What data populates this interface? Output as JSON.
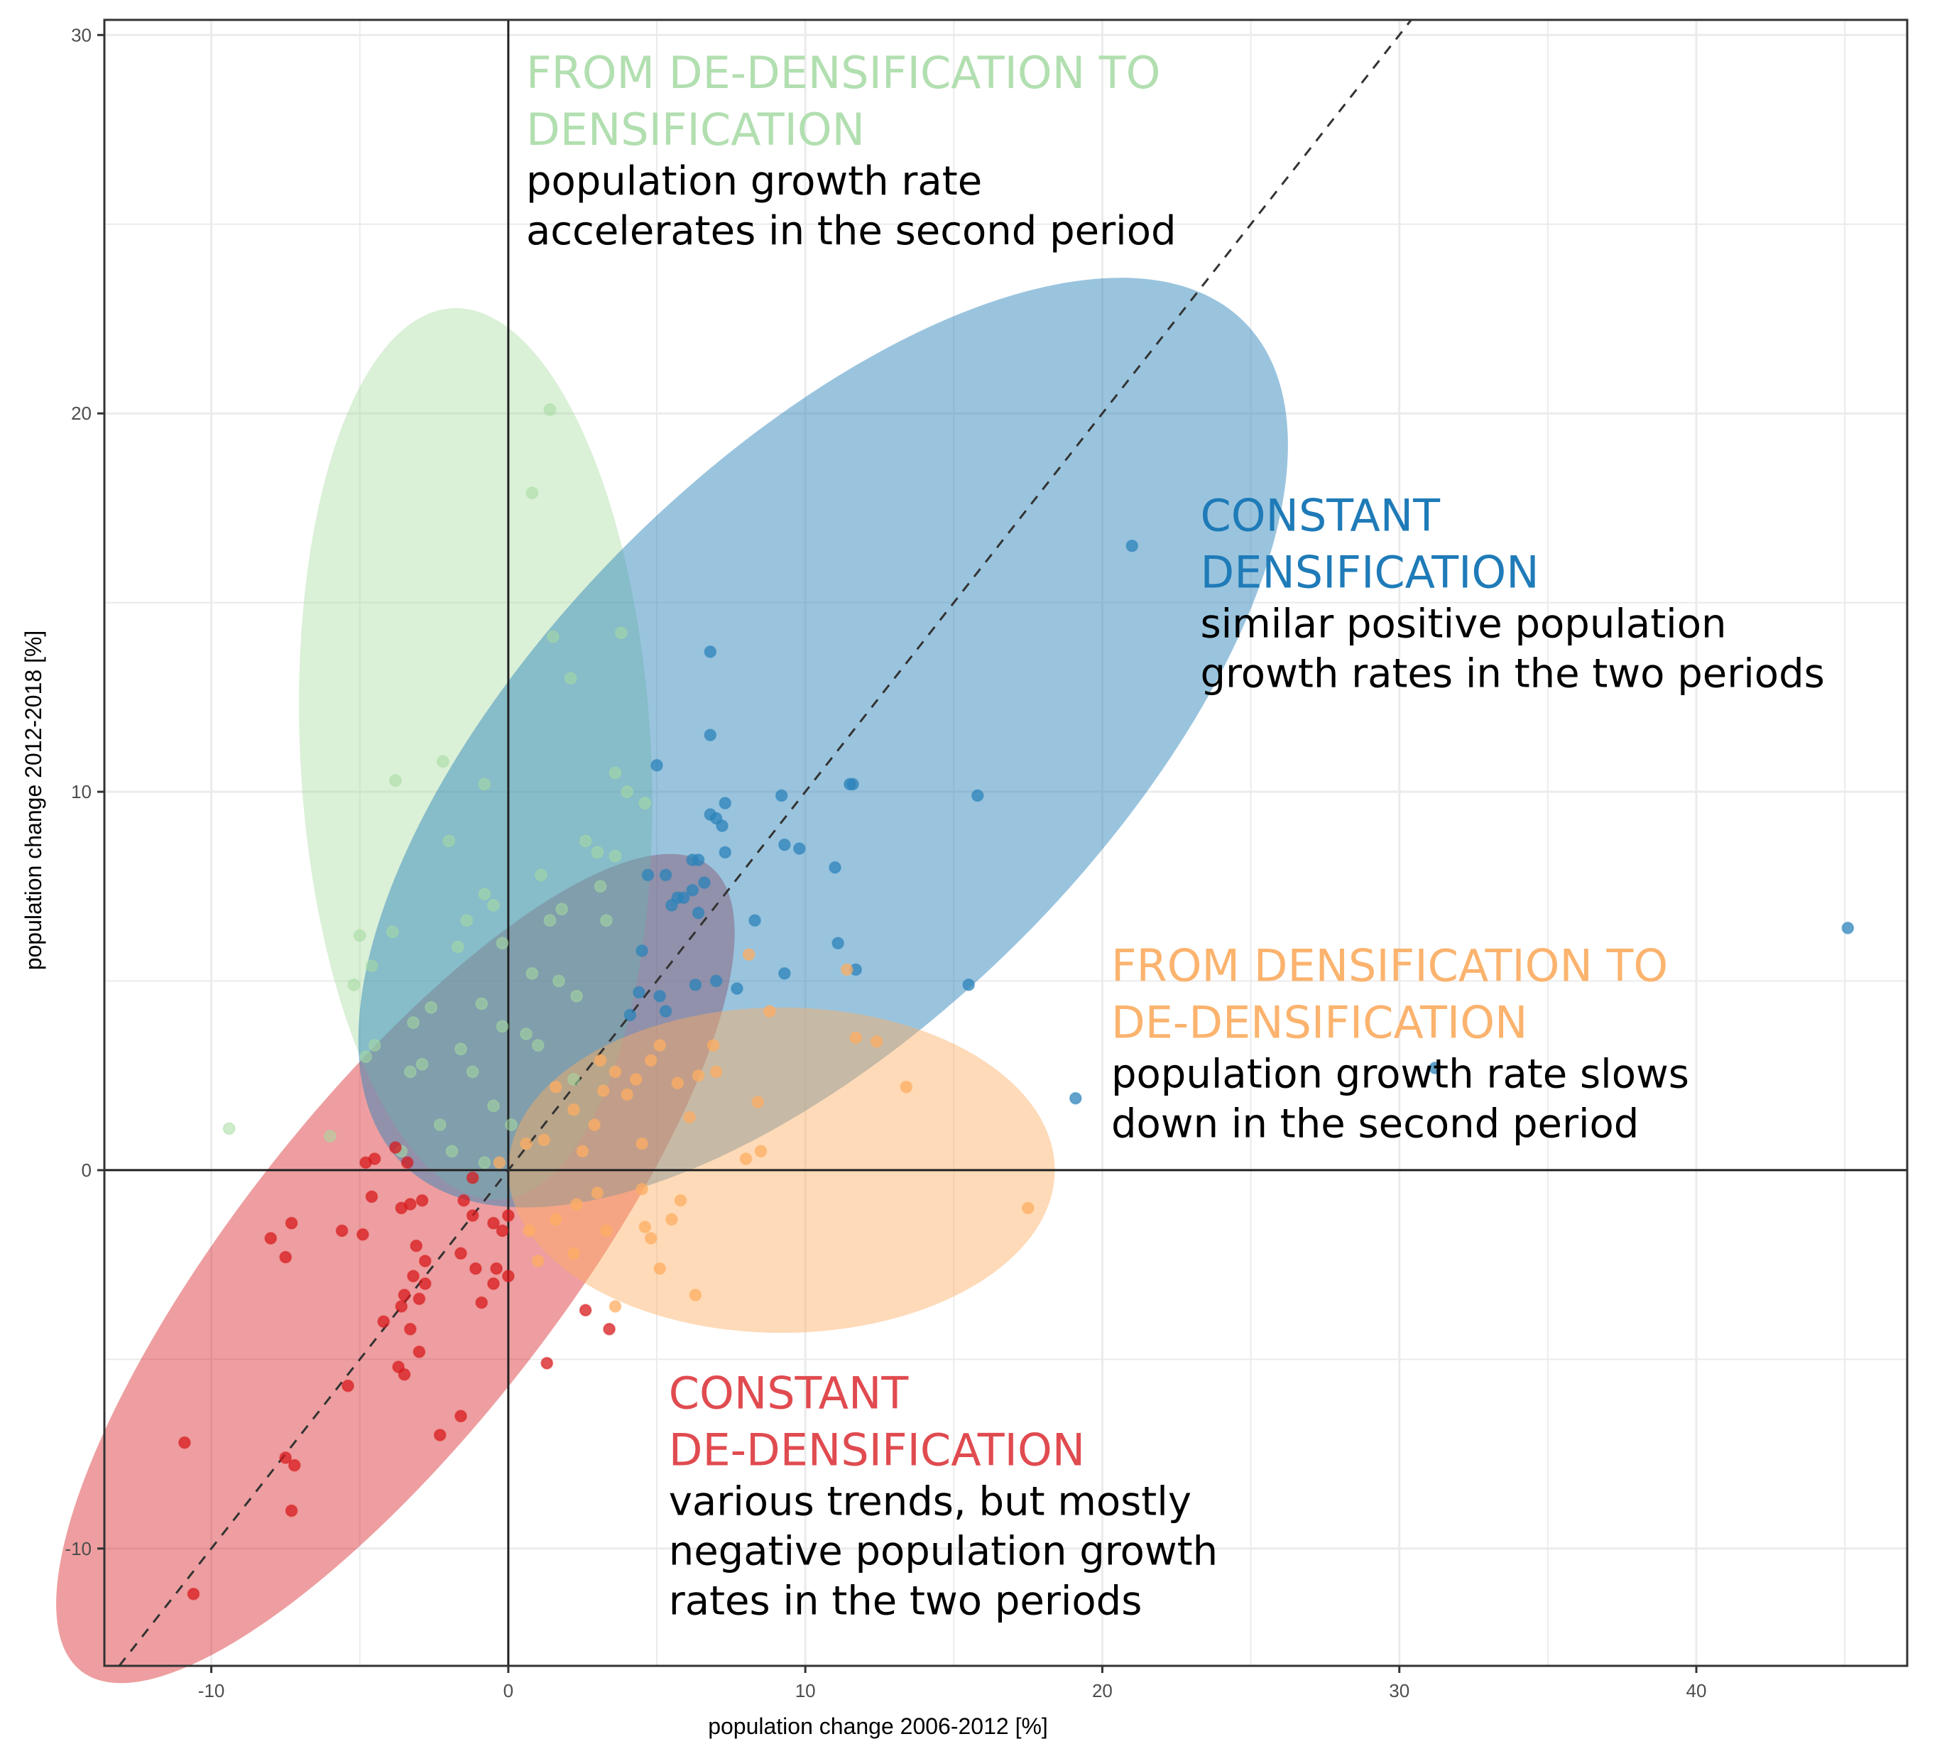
{
  "chart_data": {
    "type": "scatter",
    "title": "",
    "xlabel": "population change 2006-2012 [%]",
    "ylabel": "population change 2012-2018 [%]",
    "xlim": [
      -13.6,
      47.1
    ],
    "ylim": [
      -13.1,
      30.4
    ],
    "x_ticks": [
      -10,
      0,
      10,
      20,
      30,
      40
    ],
    "y_ticks": [
      -10,
      0,
      10,
      20,
      30
    ],
    "x_tick_labels": [
      "-10",
      "0",
      "10",
      "20",
      "30",
      "40"
    ],
    "y_tick_labels": [
      "-10",
      "0",
      "10",
      "20",
      "30"
    ],
    "grid": true,
    "reference_lines": {
      "x0": true,
      "y0": true,
      "diagonal_dashed": "y = x"
    },
    "series": [
      {
        "name": "FROM DE-DENSIFICATION TO DENSIFICATION",
        "color": "#a6dba0",
        "ellipse": {
          "cx": -1.1,
          "cy": 11.0,
          "rx": 5.9,
          "ry": 11.8,
          "angle": -3
        },
        "points": [
          [
            1.4,
            20.1
          ],
          [
            0.8,
            17.9
          ],
          [
            1.5,
            14.1
          ],
          [
            3.8,
            14.2
          ],
          [
            2.1,
            13.0
          ],
          [
            -2.2,
            10.8
          ],
          [
            -3.8,
            10.3
          ],
          [
            -0.8,
            10.2
          ],
          [
            3.6,
            10.5
          ],
          [
            4.0,
            10.0
          ],
          [
            4.6,
            9.7
          ],
          [
            -2.0,
            8.7
          ],
          [
            2.6,
            8.7
          ],
          [
            3.0,
            8.4
          ],
          [
            3.6,
            8.3
          ],
          [
            1.1,
            7.8
          ],
          [
            3.1,
            7.5
          ],
          [
            -0.8,
            7.3
          ],
          [
            -0.5,
            7.0
          ],
          [
            1.8,
            6.9
          ],
          [
            3.3,
            6.6
          ],
          [
            -1.4,
            6.6
          ],
          [
            -3.9,
            6.3
          ],
          [
            -5.0,
            6.2
          ],
          [
            -0.2,
            6.0
          ],
          [
            1.4,
            6.6
          ],
          [
            -1.7,
            5.9
          ],
          [
            -4.6,
            5.4
          ],
          [
            -5.2,
            4.9
          ],
          [
            0.8,
            5.2
          ],
          [
            1.7,
            5.0
          ],
          [
            2.3,
            4.6
          ],
          [
            -0.9,
            4.4
          ],
          [
            -2.6,
            4.3
          ],
          [
            -3.2,
            3.9
          ],
          [
            -4.5,
            3.3
          ],
          [
            -4.8,
            3.0
          ],
          [
            -1.6,
            3.2
          ],
          [
            -0.2,
            3.8
          ],
          [
            0.6,
            3.6
          ],
          [
            1.0,
            3.3
          ],
          [
            -2.9,
            2.8
          ],
          [
            -3.3,
            2.6
          ],
          [
            -1.2,
            2.6
          ],
          [
            2.2,
            2.4
          ],
          [
            -9.4,
            1.1
          ],
          [
            -6.0,
            0.9
          ],
          [
            -2.3,
            1.2
          ],
          [
            -0.5,
            1.7
          ],
          [
            0.1,
            1.2
          ],
          [
            -1.9,
            0.5
          ],
          [
            -3.6,
            0.5
          ],
          [
            -0.8,
            0.2
          ]
        ]
      },
      {
        "name": "CONSTANT DENSIFICATION",
        "color": "#2b83ba",
        "ellipse": {
          "cx": 10.6,
          "cy": 11.3,
          "rx": 17.5,
          "ry": 8.2,
          "angle": -45
        },
        "points": [
          [
            21.0,
            16.5
          ],
          [
            6.8,
            13.7
          ],
          [
            6.8,
            11.5
          ],
          [
            11.6,
            10.2
          ],
          [
            11.5,
            10.2
          ],
          [
            15.8,
            9.9
          ],
          [
            5.0,
            10.7
          ],
          [
            9.2,
            9.9
          ],
          [
            7.3,
            9.7
          ],
          [
            6.8,
            9.4
          ],
          [
            7.0,
            9.3
          ],
          [
            7.2,
            9.1
          ],
          [
            9.3,
            8.6
          ],
          [
            9.8,
            8.5
          ],
          [
            7.3,
            8.4
          ],
          [
            6.4,
            8.2
          ],
          [
            6.2,
            8.2
          ],
          [
            11.0,
            8.0
          ],
          [
            4.7,
            7.8
          ],
          [
            5.3,
            7.8
          ],
          [
            6.6,
            7.6
          ],
          [
            6.2,
            7.4
          ],
          [
            5.7,
            7.2
          ],
          [
            5.9,
            7.2
          ],
          [
            5.5,
            7.0
          ],
          [
            6.4,
            6.8
          ],
          [
            8.3,
            6.6
          ],
          [
            11.1,
            6.0
          ],
          [
            11.7,
            5.3
          ],
          [
            4.5,
            5.8
          ],
          [
            7.0,
            5.0
          ],
          [
            6.3,
            4.9
          ],
          [
            7.7,
            4.8
          ],
          [
            15.5,
            4.9
          ],
          [
            5.1,
            4.6
          ],
          [
            4.4,
            4.7
          ],
          [
            5.3,
            4.2
          ],
          [
            9.3,
            5.2
          ],
          [
            45.1,
            6.4
          ],
          [
            31.2,
            2.7
          ],
          [
            19.1,
            1.9
          ],
          [
            4.1,
            4.1
          ]
        ]
      },
      {
        "name": "FROM DENSIFICATION TO DE-DENSIFICATION",
        "color": "#fdae61",
        "ellipse": {
          "cx": 9.2,
          "cy": 0.0,
          "rx": 9.2,
          "ry": 4.3,
          "angle": 0
        },
        "points": [
          [
            11.4,
            5.3
          ],
          [
            11.7,
            3.5
          ],
          [
            12.4,
            3.4
          ],
          [
            13.4,
            2.2
          ],
          [
            8.8,
            4.2
          ],
          [
            6.9,
            3.3
          ],
          [
            5.1,
            3.3
          ],
          [
            4.8,
            2.9
          ],
          [
            3.1,
            2.9
          ],
          [
            3.6,
            2.6
          ],
          [
            7.0,
            2.6
          ],
          [
            6.4,
            2.5
          ],
          [
            4.3,
            2.4
          ],
          [
            5.7,
            2.3
          ],
          [
            4.0,
            2.0
          ],
          [
            3.2,
            2.1
          ],
          [
            1.6,
            2.2
          ],
          [
            2.2,
            1.6
          ],
          [
            8.4,
            1.8
          ],
          [
            6.1,
            1.4
          ],
          [
            2.9,
            1.2
          ],
          [
            4.5,
            0.7
          ],
          [
            1.2,
            0.8
          ],
          [
            2.5,
            0.5
          ],
          [
            0.6,
            0.7
          ],
          [
            8.0,
            0.3
          ],
          [
            8.5,
            0.5
          ],
          [
            -0.3,
            0.2
          ],
          [
            17.5,
            -1.0
          ],
          [
            4.5,
            -0.5
          ],
          [
            2.3,
            -0.9
          ],
          [
            3.0,
            -0.6
          ],
          [
            1.6,
            -1.3
          ],
          [
            0.7,
            -1.6
          ],
          [
            5.8,
            -0.8
          ],
          [
            4.6,
            -1.5
          ],
          [
            3.3,
            -1.6
          ],
          [
            5.5,
            -1.3
          ],
          [
            2.2,
            -2.2
          ],
          [
            1.0,
            -2.4
          ],
          [
            5.1,
            -2.6
          ],
          [
            6.3,
            -3.3
          ],
          [
            3.6,
            -3.6
          ],
          [
            4.8,
            -1.8
          ],
          [
            8.1,
            5.7
          ]
        ]
      },
      {
        "name": "CONSTANT DE-DENSIFICATION",
        "color": "#d7191c",
        "ellipse": {
          "cx": -3.8,
          "cy": -2.6,
          "rx": 14.6,
          "ry": 4.9,
          "angle": -52
        },
        "points": [
          [
            -4.8,
            0.2
          ],
          [
            -4.5,
            0.3
          ],
          [
            -3.8,
            0.6
          ],
          [
            -3.4,
            0.2
          ],
          [
            -4.6,
            -0.7
          ],
          [
            -3.6,
            -1.0
          ],
          [
            -3.3,
            -0.9
          ],
          [
            -2.9,
            -0.8
          ],
          [
            -1.5,
            -0.8
          ],
          [
            -1.2,
            -1.2
          ],
          [
            -0.5,
            -1.4
          ],
          [
            -0.2,
            -1.6
          ],
          [
            0.0,
            -1.2
          ],
          [
            -8.0,
            -1.8
          ],
          [
            -7.3,
            -1.4
          ],
          [
            -5.6,
            -1.6
          ],
          [
            -7.5,
            -2.3
          ],
          [
            -4.9,
            -1.7
          ],
          [
            -3.1,
            -2.0
          ],
          [
            -2.8,
            -2.4
          ],
          [
            -1.6,
            -2.2
          ],
          [
            -1.1,
            -2.6
          ],
          [
            -0.4,
            -2.6
          ],
          [
            0.0,
            -2.8
          ],
          [
            -0.5,
            -3.0
          ],
          [
            -3.2,
            -2.8
          ],
          [
            -2.8,
            -3.0
          ],
          [
            -3.5,
            -3.3
          ],
          [
            -3.6,
            -3.6
          ],
          [
            -3.0,
            -3.4
          ],
          [
            -4.2,
            -4.0
          ],
          [
            -3.3,
            -4.2
          ],
          [
            -3.0,
            -4.8
          ],
          [
            -3.7,
            -5.2
          ],
          [
            -3.5,
            -5.4
          ],
          [
            -0.9,
            -3.5
          ],
          [
            -5.4,
            -5.7
          ],
          [
            -1.6,
            -6.5
          ],
          [
            -2.3,
            -7.0
          ],
          [
            -7.5,
            -7.6
          ],
          [
            -7.2,
            -7.8
          ],
          [
            -7.3,
            -9.0
          ],
          [
            -10.9,
            -7.2
          ],
          [
            -10.6,
            -11.2
          ],
          [
            2.6,
            -3.7
          ],
          [
            1.3,
            -5.1
          ],
          [
            3.4,
            -4.2
          ],
          [
            -1.2,
            -0.2
          ]
        ]
      }
    ],
    "annotations": [
      {
        "title_lines": [
          "FROM DE-DENSIFICATION TO",
          "DENSIFICATION"
        ],
        "body_lines": [
          "population growth rate",
          "accelerates in the second period"
        ],
        "color": "#b2dfb0",
        "anchor": [
          0.6,
          28.6
        ]
      },
      {
        "title_lines": [
          "CONSTANT",
          "DENSIFICATION"
        ],
        "body_lines": [
          "similar positive population",
          "growth rates in the two periods"
        ],
        "color": "#1f7bb8",
        "anchor": [
          23.3,
          16.9
        ]
      },
      {
        "title_lines": [
          "FROM DENSIFICATION TO",
          "DE-DENSIFICATION"
        ],
        "body_lines": [
          "population growth rate slows",
          "down in the second period"
        ],
        "color": "#fbb36e",
        "anchor": [
          20.3,
          5.0
        ]
      },
      {
        "title_lines": [
          "CONSTANT",
          "DE-DENSIFICATION"
        ],
        "body_lines": [
          "various trends, but mostly",
          "negative population growth",
          "rates in the two periods"
        ],
        "color": "#e04b50",
        "anchor": [
          5.4,
          -6.3
        ]
      }
    ]
  }
}
